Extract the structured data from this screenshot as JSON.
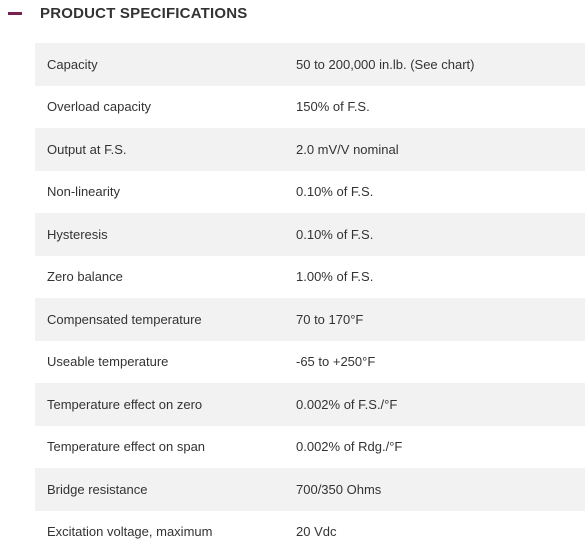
{
  "section": {
    "title": "PRODUCT SPECIFICATIONS",
    "toggle_icon": "minus-icon",
    "accent_color": "#7a1f4f",
    "expanded": true
  },
  "specs": {
    "rows": [
      {
        "label": "Capacity",
        "value": "50 to 200,000 in.lb. (See chart)"
      },
      {
        "label": "Overload capacity",
        "value": "150% of F.S."
      },
      {
        "label": "Output at F.S.",
        "value": "2.0 mV/V nominal"
      },
      {
        "label": "Non-linearity",
        "value": "0.10% of F.S."
      },
      {
        "label": "Hysteresis",
        "value": "0.10% of F.S."
      },
      {
        "label": "Zero balance",
        "value": "1.00% of F.S."
      },
      {
        "label": "Compensated temperature",
        "value": "70 to 170°F"
      },
      {
        "label": "Useable temperature",
        "value": "-65 to +250°F"
      },
      {
        "label": "Temperature effect on zero",
        "value": "0.002% of F.S./°F"
      },
      {
        "label": "Temperature effect on span",
        "value": "0.002% of Rdg./°F"
      },
      {
        "label": "Bridge resistance",
        "value": "700/350 Ohms"
      },
      {
        "label": "Excitation voltage, maximum",
        "value": "20 Vdc"
      }
    ]
  }
}
